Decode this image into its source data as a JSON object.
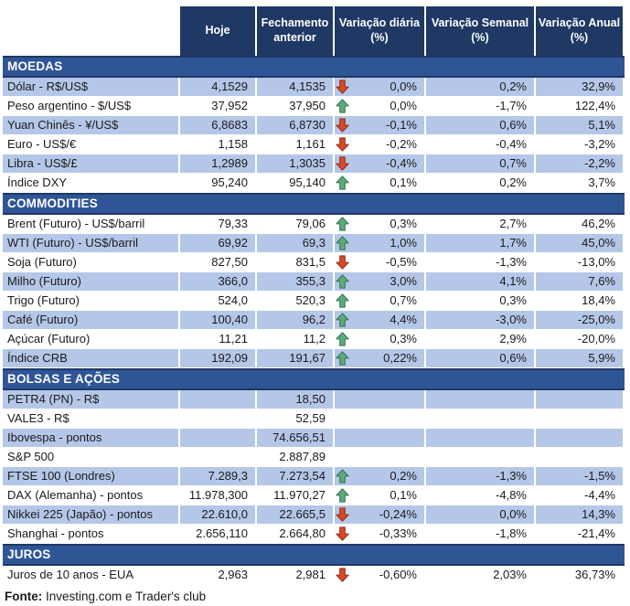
{
  "header": {
    "columns": [
      "Hoje",
      "Fechamento anterior",
      "Variação diária (%)",
      "Variação Semanal (%)",
      "Variação Anual (%)"
    ]
  },
  "colors": {
    "header_bg": "#1F3864",
    "section_bg": "#2F5597",
    "row_shaded_bg": "#B5C7E8",
    "arrow_up_fill": "#61A87B",
    "arrow_up_stroke": "#2F7A52",
    "arrow_down_fill": "#D44A2A",
    "arrow_down_stroke": "#9A2F17"
  },
  "sections": [
    {
      "title": "MOEDAS",
      "first_row_shaded": true,
      "rows": [
        {
          "label": "Dólar - R$/US$",
          "hoje": "4,1529",
          "fechamento": "4,1535",
          "trend": "down",
          "daily": "0,0%",
          "weekly": "0,2%",
          "annual": "32,9%"
        },
        {
          "label": "Peso argentino - $/US$",
          "hoje": "37,952",
          "fechamento": "37,950",
          "trend": "up",
          "daily": "0,0%",
          "weekly": "-1,7%",
          "annual": "122,4%"
        },
        {
          "label": "Yuan Chinês - ¥/US$",
          "hoje": "6,8683",
          "fechamento": "6,8730",
          "trend": "down",
          "daily": "-0,1%",
          "weekly": "0,6%",
          "annual": "5,1%"
        },
        {
          "label": "Euro - US$/€",
          "hoje": "1,158",
          "fechamento": "1,161",
          "trend": "down",
          "daily": "-0,2%",
          "weekly": "-0,4%",
          "annual": "-3,2%"
        },
        {
          "label": "Libra - US$/£",
          "hoje": "1,2989",
          "fechamento": "1,3035",
          "trend": "down",
          "daily": "-0,4%",
          "weekly": "0,7%",
          "annual": "-2,2%"
        },
        {
          "label": "Índice DXY",
          "hoje": "95,240",
          "fechamento": "95,140",
          "trend": "up",
          "daily": "0,1%",
          "weekly": "0,2%",
          "annual": "3,7%"
        }
      ]
    },
    {
      "title": "COMMODITIES",
      "first_row_shaded": false,
      "rows": [
        {
          "label": "Brent (Futuro) - US$/barril",
          "hoje": "79,33",
          "fechamento": "79,06",
          "trend": "up",
          "daily": "0,3%",
          "weekly": "2,7%",
          "annual": "46,2%"
        },
        {
          "label": "WTI (Futuro) - US$/barril",
          "hoje": "69,92",
          "fechamento": "69,3",
          "trend": "up",
          "daily": "1,0%",
          "weekly": "1,7%",
          "annual": "45,0%"
        },
        {
          "label": "Soja (Futuro)",
          "hoje": "827,50",
          "fechamento": "831,5",
          "trend": "down",
          "daily": "-0,5%",
          "weekly": "-1,3%",
          "annual": "-13,0%"
        },
        {
          "label": "Milho (Futuro)",
          "hoje": "366,0",
          "fechamento": "355,3",
          "trend": "up",
          "daily": "3,0%",
          "weekly": "4,1%",
          "annual": "7,6%"
        },
        {
          "label": "Trigo (Futuro)",
          "hoje": "524,0",
          "fechamento": "520,3",
          "trend": "up",
          "daily": "0,7%",
          "weekly": "0,3%",
          "annual": "18,4%"
        },
        {
          "label": "Café (Futuro)",
          "hoje": "100,40",
          "fechamento": "96,2",
          "trend": "up",
          "daily": "4,4%",
          "weekly": "-3,0%",
          "annual": "-25,0%"
        },
        {
          "label": "Açúcar (Futuro)",
          "hoje": "11,21",
          "fechamento": "11,2",
          "trend": "up",
          "daily": "0,3%",
          "weekly": "2,9%",
          "annual": "-20,0%"
        },
        {
          "label": "Índice CRB",
          "hoje": "192,09",
          "fechamento": "191,67",
          "trend": "up",
          "daily": "0,22%",
          "weekly": "0,6%",
          "annual": "5,9%"
        }
      ]
    },
    {
      "title": "BOLSAS E AÇÕES",
      "first_row_shaded": true,
      "rows": [
        {
          "label": "PETR4 (PN) - R$",
          "hoje": "",
          "fechamento": "18,50",
          "trend": "",
          "daily": "",
          "weekly": "",
          "annual": ""
        },
        {
          "label": "VALE3 - R$",
          "hoje": "",
          "fechamento": "52,59",
          "trend": "",
          "daily": "",
          "weekly": "",
          "annual": ""
        },
        {
          "label": "Ibovespa - pontos",
          "hoje": "",
          "fechamento": "74.656,51",
          "trend": "",
          "daily": "",
          "weekly": "",
          "annual": ""
        },
        {
          "label": "S&P 500",
          "hoje": "",
          "fechamento": "2.887,89",
          "trend": "",
          "daily": "",
          "weekly": "",
          "annual": ""
        },
        {
          "label": "FTSE 100 (Londres)",
          "hoje": "7.289,3",
          "fechamento": "7.273,54",
          "trend": "up",
          "daily": "0,2%",
          "weekly": "-1,3%",
          "annual": "-1,5%"
        },
        {
          "label": "DAX (Alemanha) - pontos",
          "hoje": "11.978,300",
          "fechamento": "11.970,27",
          "trend": "up",
          "daily": "0,1%",
          "weekly": "-4,8%",
          "annual": "-4,4%"
        },
        {
          "label": "Nikkei 225 (Japão) - pontos",
          "hoje": "22.610,0",
          "fechamento": "22.665,5",
          "trend": "down",
          "daily": "-0,24%",
          "weekly": "0,0%",
          "annual": "14,3%"
        },
        {
          "label": "Shanghai - pontos",
          "hoje": "2.656,110",
          "fechamento": "2.664,80",
          "trend": "down",
          "daily": "-0,33%",
          "weekly": "-1,8%",
          "annual": "-21,4%"
        }
      ]
    },
    {
      "title": "JUROS",
      "first_row_shaded": false,
      "rows": [
        {
          "label": "Juros de 10 anos - EUA",
          "hoje": "2,963",
          "fechamento": "2,981",
          "trend": "down",
          "daily": "-0,60%",
          "weekly": "2,03%",
          "annual": "36,73%"
        }
      ]
    }
  ],
  "footer": {
    "source_label": "Fonte:",
    "source_text": " Investing.com e Trader's club"
  }
}
